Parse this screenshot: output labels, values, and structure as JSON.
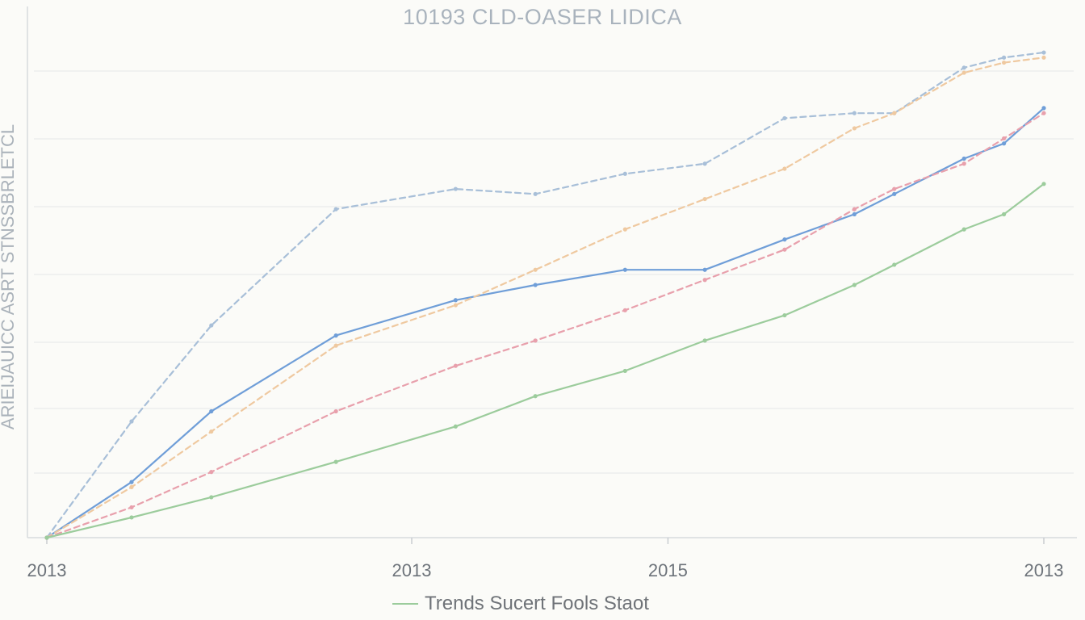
{
  "chart_data": {
    "type": "line",
    "title": "10193 CLD-OASER LIDICA",
    "xlabel": "",
    "ylabel": "ARIEIJAUICC ASRT STNSSBRLETCL",
    "xlim": [
      0,
      100
    ],
    "ylim": [
      0,
      100
    ],
    "grid": true,
    "x_ticks": [
      {
        "x": 0,
        "label": "2013"
      },
      {
        "x": 36.6,
        "label": "2013"
      },
      {
        "x": 62.3,
        "label": "2015"
      },
      {
        "x": 100,
        "label": "2013"
      }
    ],
    "x": [
      0,
      8.5,
      16.5,
      29,
      41,
      49,
      58,
      66,
      74,
      81,
      85,
      92,
      96,
      100
    ],
    "series": [
      {
        "style": "dashed",
        "color": "#a8bfd8",
        "values": [
          0,
          23,
          42,
          65,
          69,
          68,
          72,
          74,
          83,
          84,
          84,
          93,
          95,
          96
        ]
      },
      {
        "style": "solid",
        "color": "#6f9ed8",
        "values": [
          0,
          11,
          25,
          40,
          47,
          50,
          53,
          53,
          59,
          64,
          68,
          75,
          78,
          85
        ]
      },
      {
        "style": "dashed",
        "color": "#efc9a0",
        "values": [
          0,
          10,
          21,
          38,
          46,
          53,
          61,
          67,
          73,
          81,
          84,
          92,
          94,
          95
        ]
      },
      {
        "style": "dashed",
        "color": "#e8a0ac",
        "values": [
          0,
          6,
          13,
          25,
          34,
          39,
          45,
          51,
          57,
          65,
          69,
          74,
          79,
          84
        ]
      },
      {
        "style": "solid",
        "color": "#9ccc9c",
        "name": "Trends Sucert Fools Staot",
        "values": [
          0,
          4,
          8,
          15,
          22,
          28,
          33,
          39,
          44,
          50,
          54,
          61,
          64,
          70
        ]
      }
    ]
  },
  "legend": {
    "label": "Trends Sucert Fools Staot",
    "color": "#9ccc9c"
  }
}
